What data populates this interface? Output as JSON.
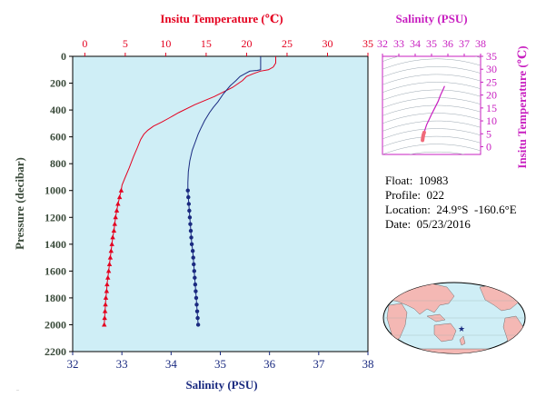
{
  "info": {
    "float_label": "Float:",
    "float_value": "10983",
    "profile_label": "Profile:",
    "profile_value": "022",
    "location_label": "Location:",
    "location_value": "24.9°S  -160.6°E",
    "date_label": "Date:",
    "date_value": "05/23/2016"
  },
  "footer_text": "...",
  "colors": {
    "temperature": "#e4001f",
    "salinity": "#1a2a80",
    "ts_curve": "#c81fc0",
    "plot_background": "#cfeef6",
    "land": "#f4b8b4",
    "ocean": "#cfeef6",
    "axis_text": "#3a4a3a"
  },
  "chart_data": [
    {
      "type": "line",
      "title": "",
      "top_xlabel": "Insitu Temperature (℃)",
      "bottom_xlabel": "Salinity (PSU)",
      "ylabel": "Pressure (decibar)",
      "temp_ticks": [
        0,
        5,
        10,
        15,
        20,
        25,
        30,
        35
      ],
      "sal_ticks": [
        32,
        33,
        34,
        35,
        36,
        37,
        38
      ],
      "pressure_ticks": [
        0,
        200,
        400,
        600,
        800,
        1000,
        1200,
        1400,
        1600,
        1800,
        2000,
        2200
      ],
      "temp_range": [
        -1.5,
        35
      ],
      "sal_range": [
        32,
        38
      ],
      "pressure_range": [
        0,
        2200
      ],
      "y_inverted": true,
      "grid": false,
      "series": [
        {
          "kind": "temperature",
          "pressure": [
            0,
            50,
            80,
            100,
            110,
            130,
            150,
            180,
            230,
            300,
            360,
            420,
            460,
            490,
            520,
            550,
            580,
            620,
            680,
            750,
            830,
            900,
            960,
            1000
          ],
          "values": [
            23.6,
            23.6,
            23.3,
            22.7,
            21.7,
            20.8,
            20.0,
            19.5,
            18.3,
            16.0,
            13.6,
            11.6,
            10.4,
            9.5,
            8.5,
            7.8,
            7.3,
            6.9,
            6.5,
            6.0,
            5.5,
            5.0,
            4.6,
            4.5
          ]
        },
        {
          "kind": "temperature_markers",
          "pressure": [
            1000,
            1050,
            1100,
            1150,
            1200,
            1250,
            1300,
            1350,
            1400,
            1450,
            1500,
            1550,
            1600,
            1650,
            1700,
            1750,
            1800,
            1850,
            1900,
            1950,
            2000
          ],
          "values": [
            4.5,
            4.3,
            4.1,
            3.95,
            3.8,
            3.7,
            3.6,
            3.45,
            3.35,
            3.25,
            3.15,
            3.05,
            2.95,
            2.85,
            2.75,
            2.7,
            2.6,
            2.55,
            2.5,
            2.45,
            2.4
          ]
        },
        {
          "kind": "salinity",
          "pressure": [
            0,
            60,
            100,
            105,
            110,
            130,
            150,
            180,
            220,
            280,
            340,
            380,
            420,
            480,
            540,
            580,
            640,
            700,
            780,
            860,
            940,
            1000
          ],
          "values": [
            35.82,
            35.82,
            35.82,
            35.75,
            35.6,
            35.5,
            35.4,
            35.32,
            35.2,
            35.06,
            34.95,
            34.86,
            34.78,
            34.68,
            34.6,
            34.55,
            34.49,
            34.43,
            34.38,
            34.35,
            34.34,
            34.34
          ]
        },
        {
          "kind": "salinity_markers",
          "pressure": [
            1000,
            1050,
            1100,
            1150,
            1200,
            1250,
            1300,
            1350,
            1400,
            1450,
            1500,
            1550,
            1600,
            1650,
            1700,
            1750,
            1800,
            1850,
            1900,
            1950,
            2000
          ],
          "values": [
            34.34,
            34.35,
            34.36,
            34.37,
            34.38,
            34.39,
            34.4,
            34.41,
            34.42,
            34.44,
            34.45,
            34.46,
            34.47,
            34.48,
            34.49,
            34.5,
            34.51,
            34.52,
            34.53,
            34.54,
            34.55
          ]
        }
      ]
    },
    {
      "type": "line",
      "title": "",
      "xlabel": "Salinity (PSU)",
      "ylabel": "Insitu Temperature (℃)",
      "x_ticks": [
        32,
        33,
        34,
        35,
        36,
        37,
        38
      ],
      "y_ticks": [
        0,
        5,
        10,
        15,
        20,
        25,
        30,
        35
      ],
      "xlim": [
        32,
        38
      ],
      "ylim": [
        -3,
        35
      ],
      "density_contours": true,
      "series": [
        {
          "salinity": [
            35.8,
            35.7,
            35.55,
            35.4,
            35.2,
            35.0,
            34.85,
            34.7,
            34.62,
            34.55,
            34.5,
            34.47,
            34.45
          ],
          "temperature": [
            23.5,
            22.0,
            20.0,
            17.5,
            15.0,
            12.5,
            10.5,
            8.5,
            7.0,
            5.5,
            4.5,
            3.5,
            2.5
          ]
        }
      ]
    }
  ]
}
